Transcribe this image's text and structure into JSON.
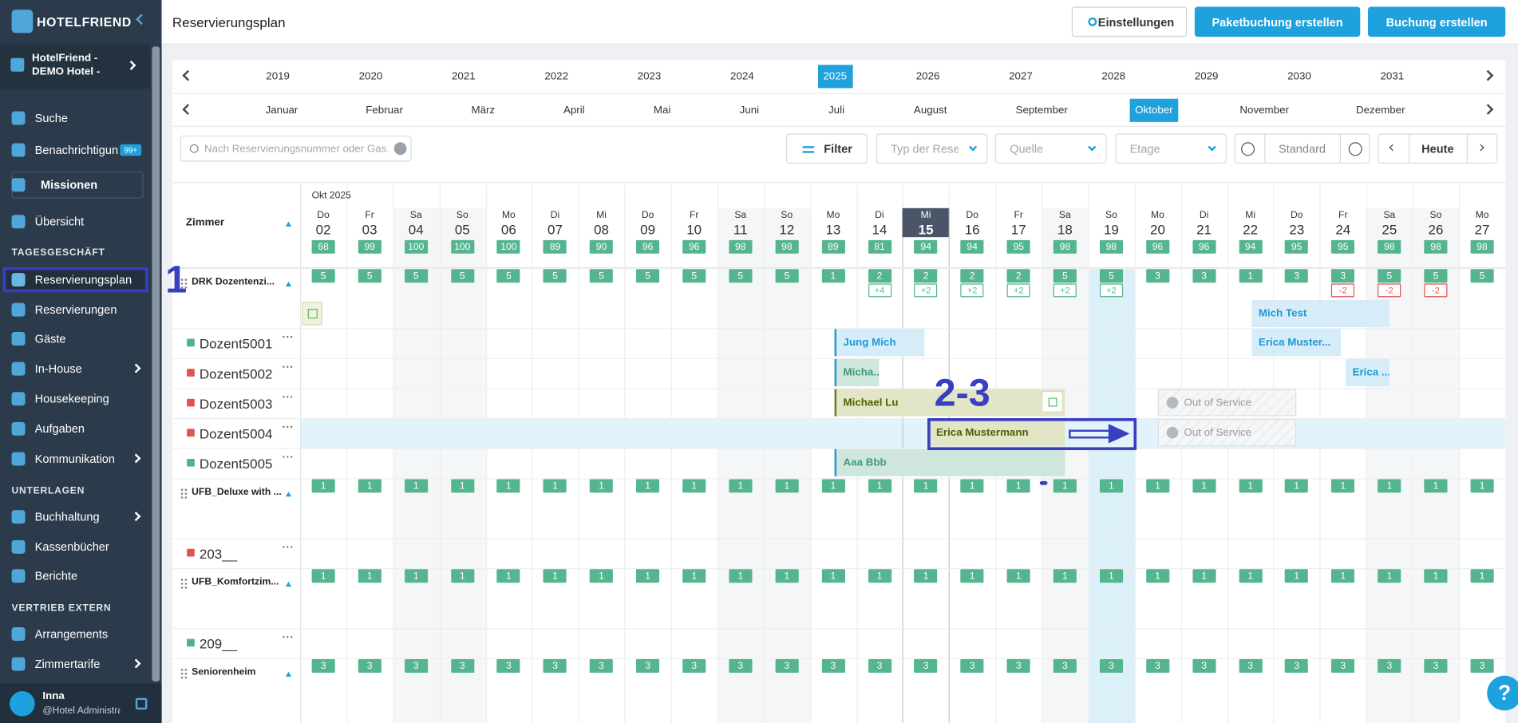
{
  "sidebar": {
    "brand": "HOTELFRIEND",
    "hotel": "HotelFriend - DEMO Hotel - Delux...",
    "badge": "99+",
    "nav": [
      {
        "label": "Suche"
      },
      {
        "label": "Benachrichtigungen"
      },
      {
        "label": "Missionen"
      },
      {
        "label": "Übersicht"
      },
      {
        "section": "TAGESGESCHÄFT"
      },
      {
        "label": "Reservierungsplan"
      },
      {
        "label": "Reservierungen"
      },
      {
        "label": "Gäste"
      },
      {
        "label": "In-House"
      },
      {
        "label": "Housekeeping"
      },
      {
        "label": "Aufgaben"
      },
      {
        "label": "Kommunikation"
      },
      {
        "section": "UNTERLAGEN"
      },
      {
        "label": "Buchhaltung"
      },
      {
        "label": "Kassenbücher"
      },
      {
        "label": "Berichte"
      },
      {
        "section": "VERTRIEB EXTERN"
      },
      {
        "label": "Arrangements"
      },
      {
        "label": "Zimmertarife"
      }
    ],
    "user": {
      "name": "Inna",
      "role": "@Hotel Administrator"
    }
  },
  "header": {
    "title": "Reservierungsplan",
    "buttons": [
      "Einstellungen",
      "Paketbuchung erstellen",
      "Buchung erstellen"
    ]
  },
  "years": {
    "items": [
      "2019",
      "2020",
      "2021",
      "2022",
      "2023",
      "2024",
      "2025",
      "2026",
      "2027",
      "2028",
      "2029",
      "2030",
      "2031"
    ],
    "active": 6
  },
  "months": {
    "items": [
      "Januar",
      "Februar",
      "März",
      "April",
      "Mai",
      "Juni",
      "Juli",
      "August",
      "September",
      "Oktober",
      "November",
      "Dezember"
    ],
    "active": 9
  },
  "toolbar": {
    "search_placeholder": "Nach Reservierungsnummer oder Gas...",
    "filter": "Filter",
    "selects": [
      "Typ der Rese",
      "Quelle",
      "Etage"
    ],
    "zoom": "Standard",
    "today": "Heute"
  },
  "calendar": {
    "month_label": "Okt 2025",
    "rooms_header": "Zimmer",
    "today_index": 13,
    "selected_index": 17,
    "days": [
      {
        "dow": "Do",
        "day": "02",
        "occupancy": 68
      },
      {
        "dow": "Fr",
        "day": "03",
        "occupancy": 99
      },
      {
        "dow": "Sa",
        "day": "04",
        "occupancy": 100
      },
      {
        "dow": "So",
        "day": "05",
        "occupancy": 100
      },
      {
        "dow": "Mo",
        "day": "06",
        "occupancy": 100
      },
      {
        "dow": "Di",
        "day": "07",
        "occupancy": 89
      },
      {
        "dow": "Mi",
        "day": "08",
        "occupancy": 90
      },
      {
        "dow": "Do",
        "day": "09",
        "occupancy": 96
      },
      {
        "dow": "Fr",
        "day": "10",
        "occupancy": 96
      },
      {
        "dow": "Sa",
        "day": "11",
        "occupancy": 98
      },
      {
        "dow": "So",
        "day": "12",
        "occupancy": 98
      },
      {
        "dow": "Mo",
        "day": "13",
        "occupancy": 89
      },
      {
        "dow": "Di",
        "day": "14",
        "occupancy": 81
      },
      {
        "dow": "Mi",
        "day": "15",
        "occupancy": 94
      },
      {
        "dow": "Do",
        "day": "16",
        "occupancy": 94
      },
      {
        "dow": "Fr",
        "day": "17",
        "occupancy": 95
      },
      {
        "dow": "Sa",
        "day": "18",
        "occupancy": 98
      },
      {
        "dow": "So",
        "day": "19",
        "occupancy": 98
      },
      {
        "dow": "Mo",
        "day": "20",
        "occupancy": 96
      },
      {
        "dow": "Di",
        "day": "21",
        "occupancy": 96
      },
      {
        "dow": "Mi",
        "day": "22",
        "occupancy": 94
      },
      {
        "dow": "Do",
        "day": "23",
        "occupancy": 95
      },
      {
        "dow": "Fr",
        "day": "24",
        "occupancy": 95
      },
      {
        "dow": "Sa",
        "day": "25",
        "occupancy": 98
      },
      {
        "dow": "So",
        "day": "26",
        "occupancy": 98
      },
      {
        "dow": "Mo",
        "day": "27",
        "occupancy": 98
      }
    ],
    "groups": [
      {
        "name": "DRK Dozentenzi...",
        "available": [
          5,
          5,
          5,
          5,
          5,
          5,
          5,
          5,
          5,
          5,
          5,
          1,
          2,
          2,
          2,
          2,
          5,
          5,
          3,
          3,
          1,
          3,
          3,
          5,
          5,
          5
        ],
        "changes": [
          null,
          null,
          null,
          null,
          null,
          null,
          null,
          null,
          null,
          null,
          null,
          null,
          "+4",
          "+2",
          "+2",
          "+2",
          "+2",
          "+2",
          null,
          null,
          null,
          null,
          "-2",
          "-2",
          "-2",
          null
        ],
        "rooms": [
          {
            "name": "Dozent5001",
            "status_color": "#4db38c"
          },
          {
            "name": "Dozent5002",
            "status_color": "#e05353"
          },
          {
            "name": "Dozent5003",
            "status_color": "#e05353"
          },
          {
            "name": "Dozent5004",
            "status_color": "#e05353"
          },
          {
            "name": "Dozent5005",
            "status_color": "#4db38c"
          }
        ]
      },
      {
        "name": "UFB_Deluxe with ...",
        "available": [
          1,
          1,
          1,
          1,
          1,
          1,
          1,
          1,
          1,
          1,
          1,
          1,
          1,
          1,
          1,
          1,
          1,
          1,
          1,
          1,
          1,
          1,
          1,
          1,
          1,
          1
        ],
        "rooms": [
          {
            "name": "203__",
            "status_color": "#e05353"
          }
        ]
      },
      {
        "name": "UFB_Komfortzim...",
        "available": [
          1,
          1,
          1,
          1,
          1,
          1,
          1,
          1,
          1,
          1,
          1,
          1,
          1,
          1,
          1,
          1,
          1,
          1,
          1,
          1,
          1,
          1,
          1,
          1,
          1,
          1
        ],
        "rooms": [
          {
            "name": "209__",
            "status_color": "#4db38c"
          }
        ]
      },
      {
        "name": "Seniorenheim",
        "available": [
          3,
          3,
          3,
          3,
          3,
          3,
          3,
          3,
          3,
          3,
          3,
          3,
          3,
          3,
          3,
          3,
          3,
          3,
          3,
          3,
          3,
          3,
          3,
          3,
          3,
          3
        ],
        "rooms": []
      }
    ],
    "bookings": [
      {
        "name": "Mich Test"
      },
      {
        "name": "Jung Mich"
      },
      {
        "name": "Erica Muster..."
      },
      {
        "name": "Micha..."
      },
      {
        "name": "Erica ..."
      },
      {
        "name": "Michael Lu"
      },
      {
        "name": "Out of Service"
      },
      {
        "name": "Erica Mustermann"
      },
      {
        "name": "Out of Service"
      },
      {
        "name": "Aaa Bbb"
      }
    ]
  },
  "annotations": [
    "1",
    "2-3"
  ],
  "help": "?"
}
